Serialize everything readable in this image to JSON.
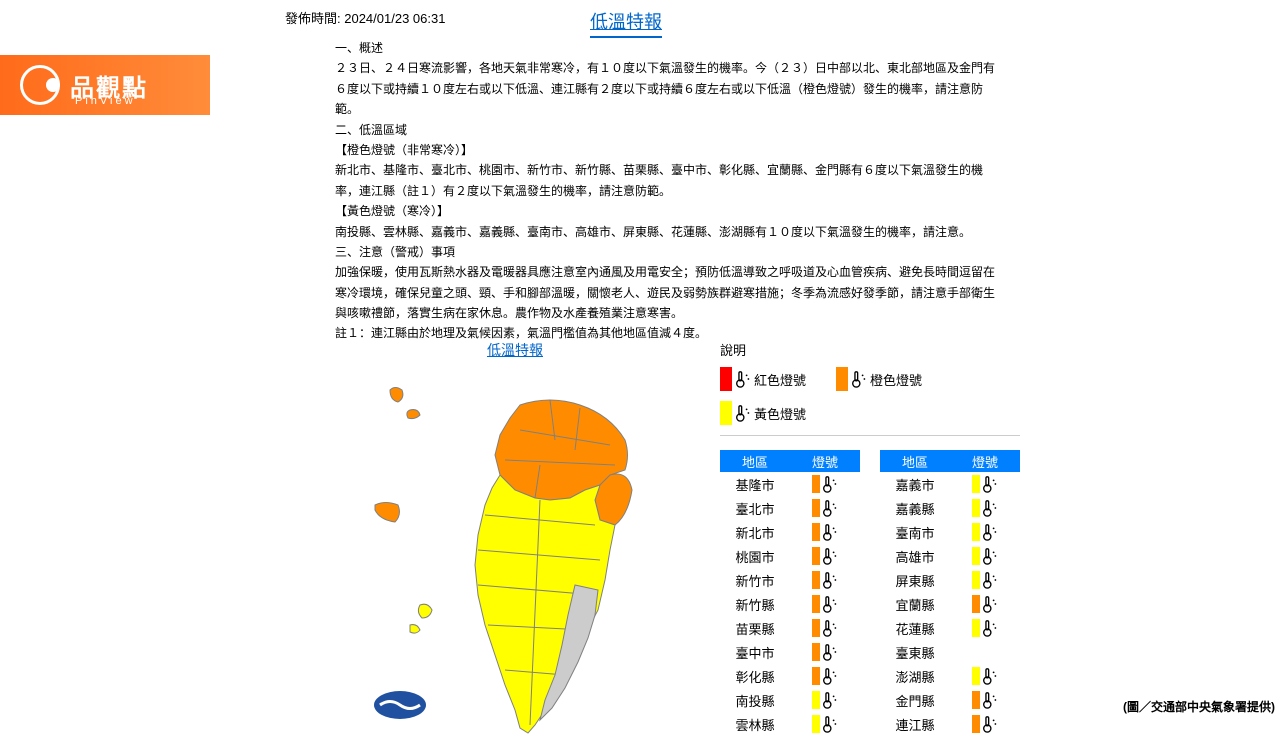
{
  "logo": {
    "text_cn": "品觀點",
    "text_en": "PinView"
  },
  "publish_time_label": "發佈時間: ",
  "publish_time": "2024/01/23 06:31",
  "title": "低溫特報",
  "content": {
    "p1": "一、概述",
    "p2": "２３日、２４日寒流影響，各地天氣非常寒冷，有１０度以下氣溫發生的機率。今（２３）日中部以北、東北部地區及金門有６度以下或持續１０度左右或以下低溫、連江縣有２度以下或持續６度左右或以下低溫（橙色燈號）發生的機率，請注意防範。",
    "p3": "二、低溫區域",
    "p4": "【橙色燈號（非常寒冷）】",
    "p5": "新北市、基隆市、臺北市、桃園市、新竹市、新竹縣、苗栗縣、臺中市、彰化縣、宜蘭縣、金門縣有６度以下氣溫發生的機率，連江縣（註１）有２度以下氣溫發生的機率，請注意防範。",
    "p6": "【黃色燈號（寒冷）】",
    "p7": "南投縣、雲林縣、嘉義市、嘉義縣、臺南市、高雄市、屏東縣、花蓮縣、澎湖縣有１０度以下氣溫發生的機率，請注意。",
    "p8": "三、注意（警戒）事項",
    "p9": "加強保暖，使用瓦斯熱水器及電暖器具應注意室內通風及用電安全；預防低溫導致之呼吸道及心血管疾病、避免長時間逗留在寒冷環境，確保兒童之頭、頸、手和腳部溫暖，關懷老人、遊民及弱勢族群避寒措施；冬季為流感好發季節，請注意手部衛生與咳嗽禮節，落實生病在家休息。農作物及水產養殖業注意寒害。",
    "p10": "註１：連江縣由於地理及氣候因素，氣溫門檻值為其他地區值減４度。"
  },
  "map_title": "低溫特報",
  "legend": {
    "title": "說明",
    "items": [
      {
        "color": "#ff0000",
        "label": "紅色燈號"
      },
      {
        "color": "#ff8c00",
        "label": "橙色燈號"
      },
      {
        "color": "#ffff00",
        "label": "黃色燈號"
      }
    ]
  },
  "table": {
    "header1": "地區",
    "header2": "燈號",
    "col1": [
      {
        "region": "基隆市",
        "signals": [
          "#ff8c00"
        ]
      },
      {
        "region": "臺北市",
        "signals": [
          "#ff8c00"
        ]
      },
      {
        "region": "新北市",
        "signals": [
          "#ff8c00"
        ]
      },
      {
        "region": "桃園市",
        "signals": [
          "#ff8c00"
        ]
      },
      {
        "region": "新竹市",
        "signals": [
          "#ff8c00"
        ]
      },
      {
        "region": "新竹縣",
        "signals": [
          "#ff8c00"
        ]
      },
      {
        "region": "苗栗縣",
        "signals": [
          "#ff8c00"
        ]
      },
      {
        "region": "臺中市",
        "signals": [
          "#ff8c00"
        ]
      },
      {
        "region": "彰化縣",
        "signals": [
          "#ff8c00"
        ]
      },
      {
        "region": "南投縣",
        "signals": [
          "#ffff00"
        ]
      },
      {
        "region": "雲林縣",
        "signals": [
          "#ffff00"
        ]
      }
    ],
    "col2": [
      {
        "region": "嘉義市",
        "signals": [
          "#ffff00"
        ]
      },
      {
        "region": "嘉義縣",
        "signals": [
          "#ffff00"
        ]
      },
      {
        "region": "臺南市",
        "signals": [
          "#ffff00"
        ]
      },
      {
        "region": "高雄市",
        "signals": [
          "#ffff00"
        ]
      },
      {
        "region": "屏東縣",
        "signals": [
          "#ffff00"
        ]
      },
      {
        "region": "宜蘭縣",
        "signals": [
          "#ff8c00"
        ]
      },
      {
        "region": "花蓮縣",
        "signals": [
          "#ffff00"
        ]
      },
      {
        "region": "臺東縣",
        "signals": []
      },
      {
        "region": "澎湖縣",
        "signals": [
          "#ffff00"
        ]
      },
      {
        "region": "金門縣",
        "signals": [
          "#ff8c00"
        ]
      },
      {
        "region": "連江縣",
        "signals": [
          "#ff8c00"
        ]
      }
    ]
  },
  "map_colors": {
    "orange": "#ff8c00",
    "yellow": "#ffff00",
    "gray": "#cccccc",
    "stroke": "#808080"
  },
  "credit": "(圖／交通部中央氣象署提供)"
}
